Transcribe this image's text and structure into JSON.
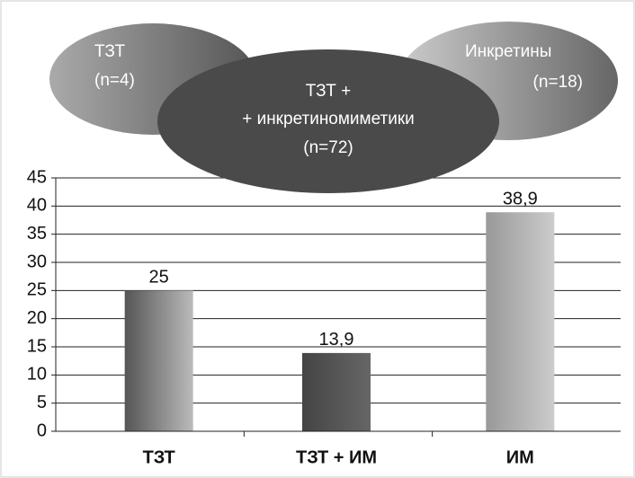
{
  "chart_data": {
    "type": "bar",
    "categories": [
      "ТЗТ",
      "ТЗТ + ИМ",
      "ИМ"
    ],
    "values": [
      25,
      13.9,
      38.9
    ],
    "value_labels": [
      "25",
      "13,9",
      "38,9"
    ],
    "ylim": [
      0,
      45
    ],
    "yticks": [
      0,
      5,
      10,
      15,
      20,
      25,
      30,
      35,
      40,
      45
    ],
    "grid": true,
    "annotations": [
      {
        "text": [
          "ТЗТ",
          "(n=4)"
        ]
      },
      {
        "text": [
          "Инкретины",
          "(n=18)"
        ]
      },
      {
        "text": [
          "ТЗТ  +",
          "+ инкретиномиметики",
          "(n=72)"
        ]
      }
    ]
  }
}
